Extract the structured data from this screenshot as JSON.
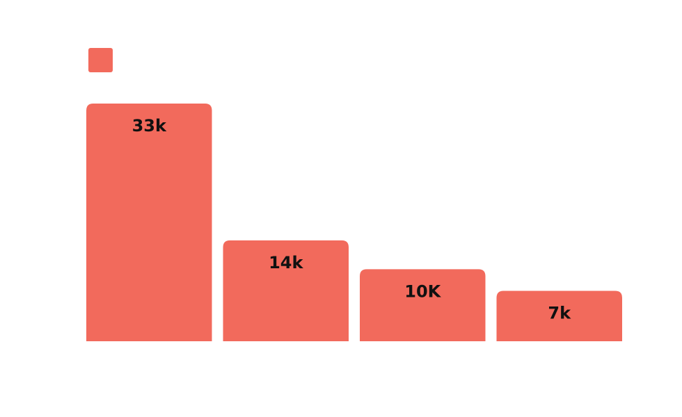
{
  "chart_data": {
    "type": "bar",
    "categories": [
      "",
      "",
      "",
      ""
    ],
    "series": [
      {
        "values": [
          33000,
          14000,
          10000,
          7000
        ],
        "data_labels": [
          "33k",
          "14k",
          "10K",
          "7k"
        ],
        "color": "#f26a5c"
      }
    ],
    "ylim": [
      0,
      35000
    ],
    "grid": false,
    "legend": "top-left",
    "title": "",
    "xlabel": "",
    "ylabel": ""
  }
}
